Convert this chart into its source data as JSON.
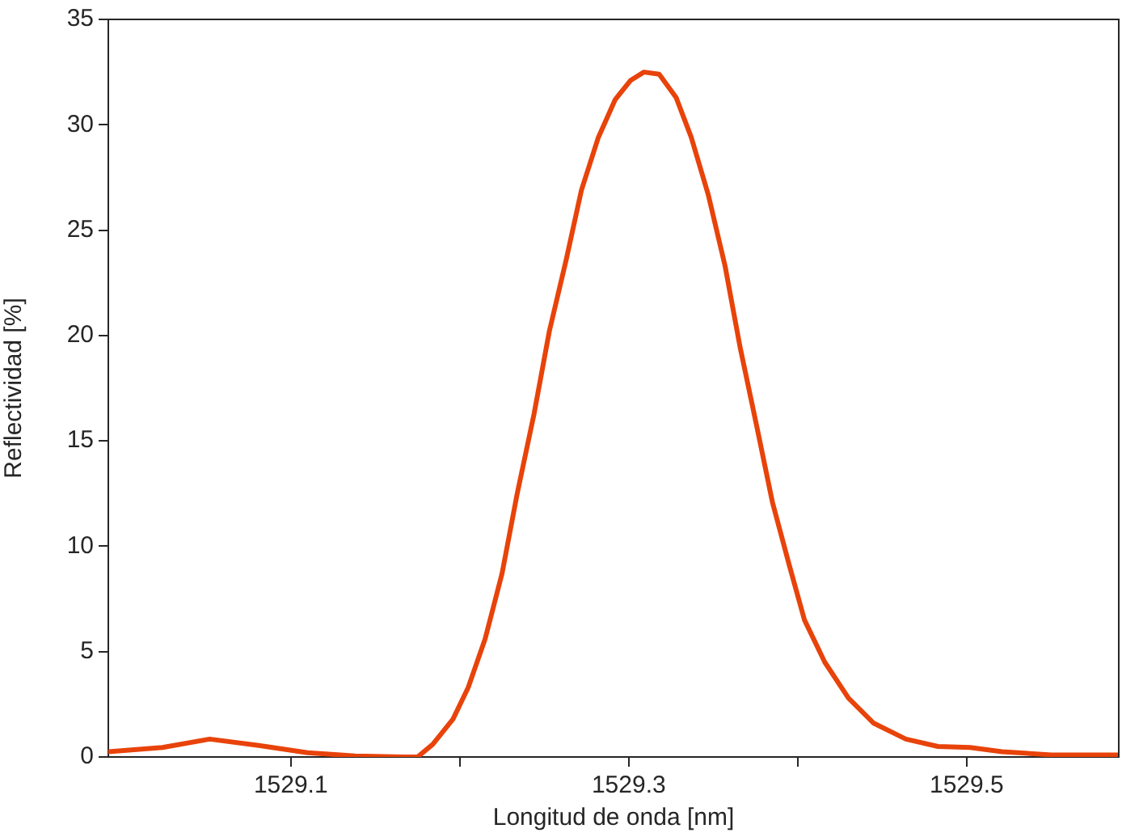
{
  "chart_data": {
    "type": "line",
    "xlabel": "Longitud de onda [nm]",
    "ylabel": "Reflectividad [%]",
    "xlim": [
      1528.992,
      1529.59
    ],
    "ylim": [
      0,
      35
    ],
    "xticks": [
      1529.1,
      {
        "value": 1529.2,
        "label": null
      },
      1529.3,
      {
        "value": 1529.4,
        "label": null
      },
      1529.5
    ],
    "yticks": [
      0,
      5,
      10,
      15,
      20,
      25,
      30,
      35
    ],
    "grid": false,
    "legend": false,
    "marker": "none",
    "line_style": "solid",
    "series": [
      {
        "color": "#e8430a",
        "x": [
          1528.992,
          1529.024,
          1529.052,
          1529.081,
          1529.11,
          1529.138,
          1529.167,
          1529.175,
          1529.184,
          1529.196,
          1529.205,
          1529.215,
          1529.225,
          1529.234,
          1529.244,
          1529.253,
          1529.263,
          1529.272,
          1529.282,
          1529.292,
          1529.301,
          1529.309,
          1529.318,
          1529.328,
          1529.337,
          1529.347,
          1529.357,
          1529.366,
          1529.376,
          1529.385,
          1529.395,
          1529.404,
          1529.416,
          1529.43,
          1529.445,
          1529.464,
          1529.483,
          1529.502,
          1529.521,
          1529.55,
          1529.59
        ],
        "values": [
          0.25,
          0.45,
          0.85,
          0.55,
          0.2,
          0.05,
          0,
          0,
          0.6,
          1.8,
          3.3,
          5.6,
          8.7,
          12.5,
          16.3,
          20.2,
          23.6,
          26.9,
          29.4,
          31.2,
          32.1,
          32.5,
          32.4,
          31.3,
          29.4,
          26.7,
          23.3,
          19.4,
          15.6,
          12.1,
          9.1,
          6.5,
          4.5,
          2.8,
          1.6,
          0.85,
          0.5,
          0.45,
          0.25,
          0.1,
          0.1
        ]
      }
    ]
  }
}
